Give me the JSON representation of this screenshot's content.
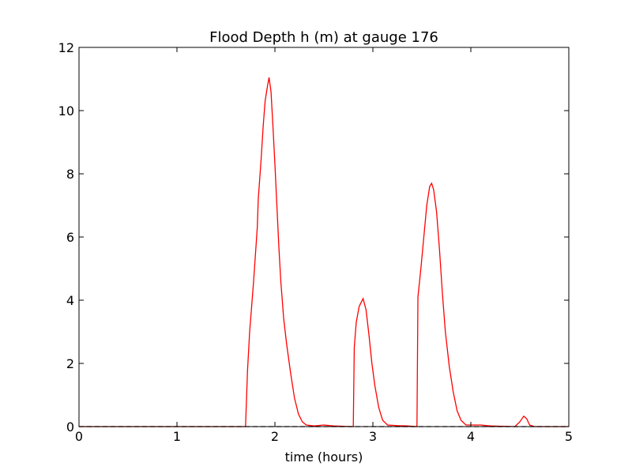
{
  "chart_data": {
    "type": "line",
    "title": "Flood Depth h (m) at gauge 176",
    "xlabel": "time (hours)",
    "xlim": [
      0,
      5
    ],
    "xticks": [
      0,
      1,
      2,
      3,
      4,
      5
    ],
    "ylim": [
      0,
      12
    ],
    "yticks": [
      0,
      2,
      4,
      6,
      8,
      10,
      12
    ],
    "series": [
      {
        "color": "#ff0000",
        "dash": false,
        "x": [
          0,
          1.7,
          1.72,
          1.742,
          1.78,
          1.82,
          1.83,
          1.86,
          1.88,
          1.9,
          1.92,
          1.94,
          1.96,
          1.98,
          2.0,
          2.02,
          2.04,
          2.06,
          2.09,
          2.12,
          2.16,
          2.2,
          2.24,
          2.28,
          2.32,
          2.4,
          2.5,
          2.6,
          2.78,
          2.8,
          2.81,
          2.83,
          2.86,
          2.9,
          2.93,
          2.96,
          2.99,
          3.02,
          3.06,
          3.1,
          3.15,
          3.25,
          3.35,
          3.45,
          3.46,
          3.49,
          3.52,
          3.55,
          3.58,
          3.6,
          3.62,
          3.65,
          3.68,
          3.71,
          3.74,
          3.78,
          3.82,
          3.86,
          3.9,
          3.95,
          4.1,
          4.2,
          4.45,
          4.5,
          4.54,
          4.57,
          4.6,
          4.65,
          5.0
        ],
        "values": [
          0,
          0,
          1.75,
          3.0,
          4.5,
          6.3,
          7.2,
          8.5,
          9.5,
          10.3,
          10.7,
          11.05,
          10.6,
          9.5,
          8.3,
          7.0,
          5.7,
          4.6,
          3.4,
          2.6,
          1.7,
          0.9,
          0.4,
          0.15,
          0.05,
          0.02,
          0.05,
          0.02,
          0,
          0,
          2.5,
          3.3,
          3.8,
          4.05,
          3.7,
          2.9,
          2.0,
          1.3,
          0.6,
          0.2,
          0.05,
          0.03,
          0.02,
          0,
          4.1,
          5.0,
          6.0,
          7.0,
          7.6,
          7.7,
          7.5,
          6.8,
          5.6,
          4.2,
          3.0,
          1.9,
          1.1,
          0.5,
          0.2,
          0.05,
          0.05,
          0.02,
          0,
          0.15,
          0.33,
          0.25,
          0.05,
          0,
          0
        ]
      },
      {
        "color": "#000000",
        "dash": true,
        "x": [
          0,
          5
        ],
        "values": [
          0,
          0
        ]
      }
    ]
  }
}
